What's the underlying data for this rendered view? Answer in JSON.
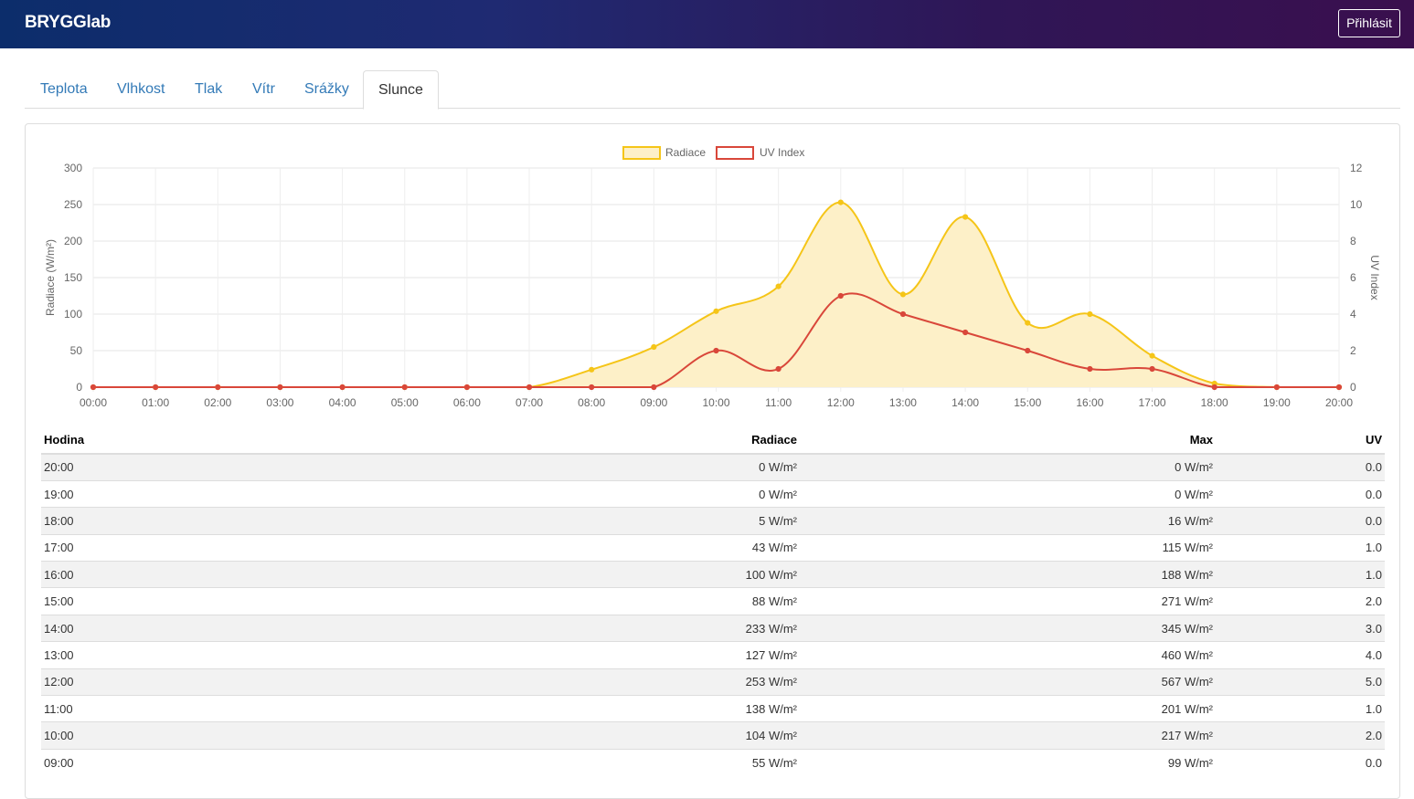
{
  "app": {
    "brand": "BRYGGlab",
    "login_label": "Přihlásit"
  },
  "tabs": [
    {
      "label": "Teplota",
      "active": false
    },
    {
      "label": "Vlhkost",
      "active": false
    },
    {
      "label": "Tlak",
      "active": false
    },
    {
      "label": "Vítr",
      "active": false
    },
    {
      "label": "Srážky",
      "active": false
    },
    {
      "label": "Slunce",
      "active": true
    }
  ],
  "colors": {
    "radiace": "#f5c518",
    "radiace_fill": "#fdf0c8",
    "uv": "#d9473a"
  },
  "chart_data": {
    "type": "line",
    "categories": [
      "00:00",
      "01:00",
      "02:00",
      "03:00",
      "04:00",
      "05:00",
      "06:00",
      "07:00",
      "08:00",
      "09:00",
      "10:00",
      "11:00",
      "12:00",
      "13:00",
      "14:00",
      "15:00",
      "16:00",
      "17:00",
      "18:00",
      "19:00",
      "20:00"
    ],
    "series": [
      {
        "name": "Radiace",
        "axis": "left",
        "fill": true,
        "values": [
          0,
          0,
          0,
          0,
          0,
          0,
          0,
          0,
          24,
          55,
          104,
          138,
          253,
          127,
          233,
          88,
          100,
          43,
          5,
          0,
          0
        ]
      },
      {
        "name": "UV Index",
        "axis": "right",
        "fill": false,
        "values": [
          0,
          0,
          0,
          0,
          0,
          0,
          0,
          0,
          0,
          0,
          2,
          1,
          5,
          4,
          3,
          2,
          1,
          1,
          0,
          0,
          0
        ]
      }
    ],
    "ylabel": "Radiace (W/m²)",
    "y2label": "UV Index",
    "ylim": [
      0,
      300
    ],
    "y2lim": [
      0,
      12
    ],
    "yticks": [
      "0",
      "50",
      "100",
      "150",
      "200",
      "250",
      "300"
    ],
    "y2ticks": [
      "0",
      "2",
      "4",
      "6",
      "8",
      "10",
      "12"
    ],
    "grid": true,
    "legend": "top-center"
  },
  "table": {
    "headers": {
      "hour": "Hodina",
      "radiace": "Radiace",
      "max": "Max",
      "uv": "UV"
    },
    "rows": [
      {
        "hour": "20:00",
        "radiace": "0 W/m²",
        "max": "0 W/m²",
        "uv": "0.0"
      },
      {
        "hour": "19:00",
        "radiace": "0 W/m²",
        "max": "0 W/m²",
        "uv": "0.0"
      },
      {
        "hour": "18:00",
        "radiace": "5 W/m²",
        "max": "16 W/m²",
        "uv": "0.0"
      },
      {
        "hour": "17:00",
        "radiace": "43 W/m²",
        "max": "115 W/m²",
        "uv": "1.0"
      },
      {
        "hour": "16:00",
        "radiace": "100 W/m²",
        "max": "188 W/m²",
        "uv": "1.0"
      },
      {
        "hour": "15:00",
        "radiace": "88 W/m²",
        "max": "271 W/m²",
        "uv": "2.0"
      },
      {
        "hour": "14:00",
        "radiace": "233 W/m²",
        "max": "345 W/m²",
        "uv": "3.0"
      },
      {
        "hour": "13:00",
        "radiace": "127 W/m²",
        "max": "460 W/m²",
        "uv": "4.0"
      },
      {
        "hour": "12:00",
        "radiace": "253 W/m²",
        "max": "567 W/m²",
        "uv": "5.0"
      },
      {
        "hour": "11:00",
        "radiace": "138 W/m²",
        "max": "201 W/m²",
        "uv": "1.0"
      },
      {
        "hour": "10:00",
        "radiace": "104 W/m²",
        "max": "217 W/m²",
        "uv": "2.0"
      },
      {
        "hour": "09:00",
        "radiace": "55 W/m²",
        "max": "99 W/m²",
        "uv": "0.0"
      }
    ]
  }
}
